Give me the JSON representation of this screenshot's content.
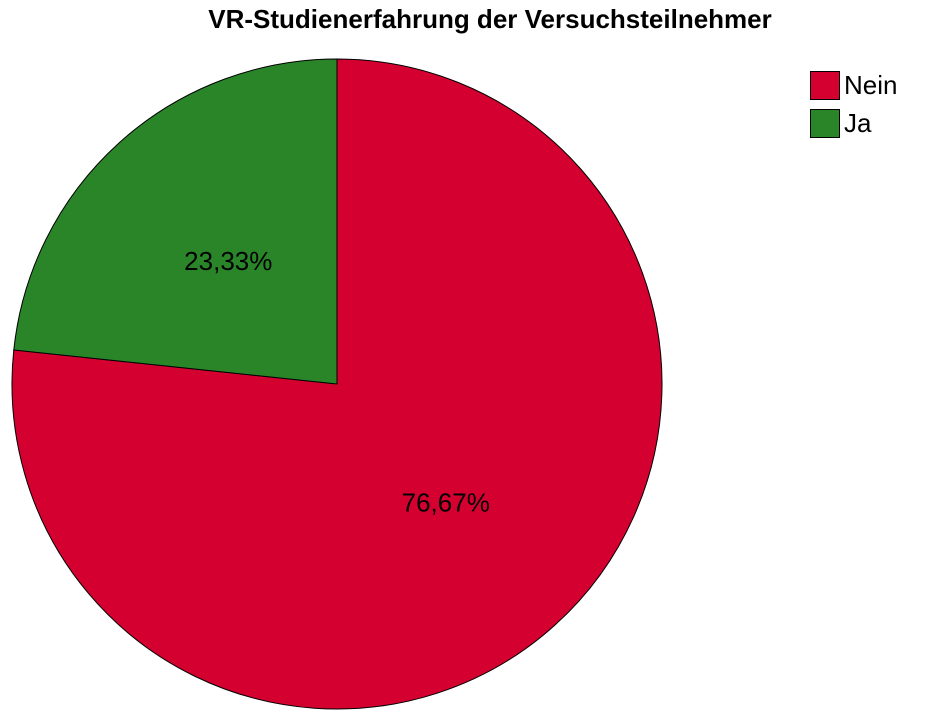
{
  "chart_data": {
    "type": "pie",
    "title": "VR-Studienerfahrung der Versuchsteilnehmer",
    "slices": [
      {
        "label": "Nein",
        "value": 76.67,
        "display": "76,67%",
        "color": "#d40030"
      },
      {
        "label": "Ja",
        "value": 23.33,
        "display": "23,33%",
        "color": "#2a8529"
      }
    ],
    "start_angle_deg": 0,
    "direction": "clockwise",
    "legend_position": "top-right"
  }
}
